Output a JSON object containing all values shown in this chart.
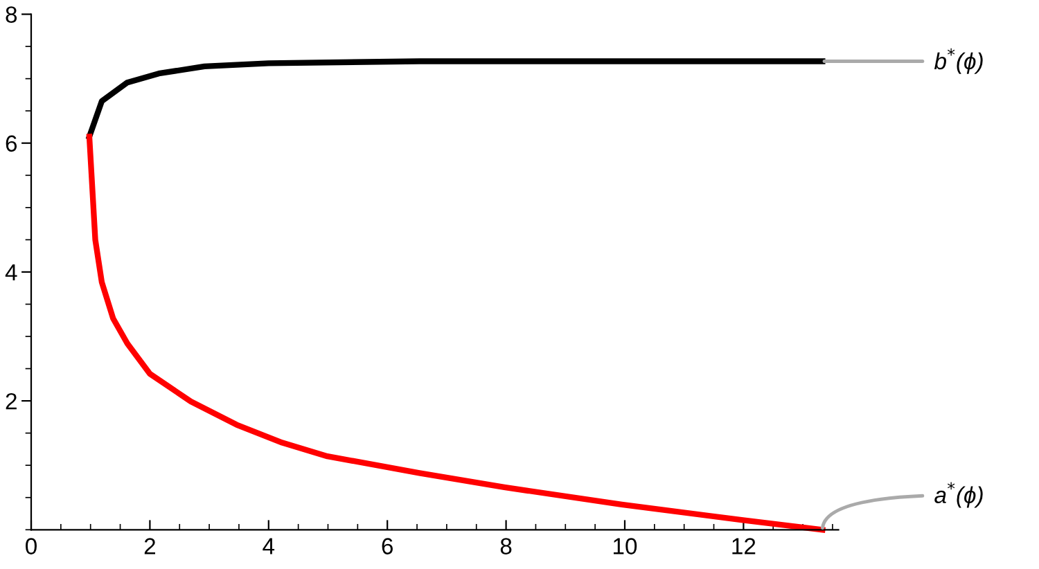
{
  "chart_data": {
    "type": "line",
    "xlim": [
      0,
      13.6
    ],
    "ylim": [
      0,
      8
    ],
    "xticks": [
      0,
      {
        "value": 0.5,
        "label": null
      },
      {
        "value": 1,
        "label": null
      },
      {
        "value": 1.5,
        "label": null
      },
      2,
      {
        "value": 2.5,
        "label": null
      },
      {
        "value": 3,
        "label": null
      },
      {
        "value": 3.5,
        "label": null
      },
      4,
      {
        "value": 4.5,
        "label": null
      },
      {
        "value": 5,
        "label": null
      },
      {
        "value": 5.5,
        "label": null
      },
      6,
      {
        "value": 6.5,
        "label": null
      },
      {
        "value": 7,
        "label": null
      },
      {
        "value": 7.5,
        "label": null
      },
      8,
      {
        "value": 8.5,
        "label": null
      },
      {
        "value": 9,
        "label": null
      },
      {
        "value": 9.5,
        "label": null
      },
      10,
      {
        "value": 10.5,
        "label": null
      },
      {
        "value": 11,
        "label": null
      },
      {
        "value": 11.5,
        "label": null
      },
      12,
      {
        "value": 12.5,
        "label": null
      },
      {
        "value": 13,
        "label": null
      },
      {
        "value": 13.5,
        "label": null
      }
    ],
    "yticks": [
      {
        "value": 0,
        "label": null
      },
      {
        "value": 0.5,
        "label": null
      },
      {
        "value": 1,
        "label": null
      },
      {
        "value": 1.5,
        "label": null
      },
      2,
      {
        "value": 2.5,
        "label": null
      },
      {
        "value": 3,
        "label": null
      },
      {
        "value": 3.5,
        "label": null
      },
      4,
      {
        "value": 4.5,
        "label": null
      },
      {
        "value": 5,
        "label": null
      },
      {
        "value": 5.5,
        "label": null
      },
      6,
      {
        "value": 6.5,
        "label": null
      },
      {
        "value": 7,
        "label": null
      },
      {
        "value": 7.5,
        "label": null
      },
      8
    ],
    "grid": false,
    "legend": false,
    "series": [
      {
        "color": "#000000",
        "x": [
          0.98,
          1.19,
          1.62,
          2.15,
          2.92,
          4.0,
          6.54,
          9.0,
          11.0,
          13.33
        ],
        "values": [
          6.1,
          6.65,
          6.94,
          7.08,
          7.19,
          7.24,
          7.27,
          7.27,
          7.27,
          7.27
        ]
      },
      {
        "color": "#ff0000",
        "x": [
          0.98,
          1.08,
          1.19,
          1.38,
          1.62,
          2.0,
          2.69,
          3.46,
          4.23,
          4.99,
          6.54,
          7.97,
          9.95,
          11.99,
          13.33
        ],
        "values": [
          6.1,
          4.5,
          3.84,
          3.28,
          2.89,
          2.42,
          1.99,
          1.63,
          1.35,
          1.14,
          0.88,
          0.66,
          0.39,
          0.15,
          0.0
        ]
      }
    ],
    "annotations": [
      {
        "text": "b$^{*}$(ϕ)",
        "x": 13.33,
        "y": 7.27
      },
      {
        "text": "a$^{*}$(ϕ)",
        "x": 13.33,
        "y": 0.0
      }
    ]
  }
}
